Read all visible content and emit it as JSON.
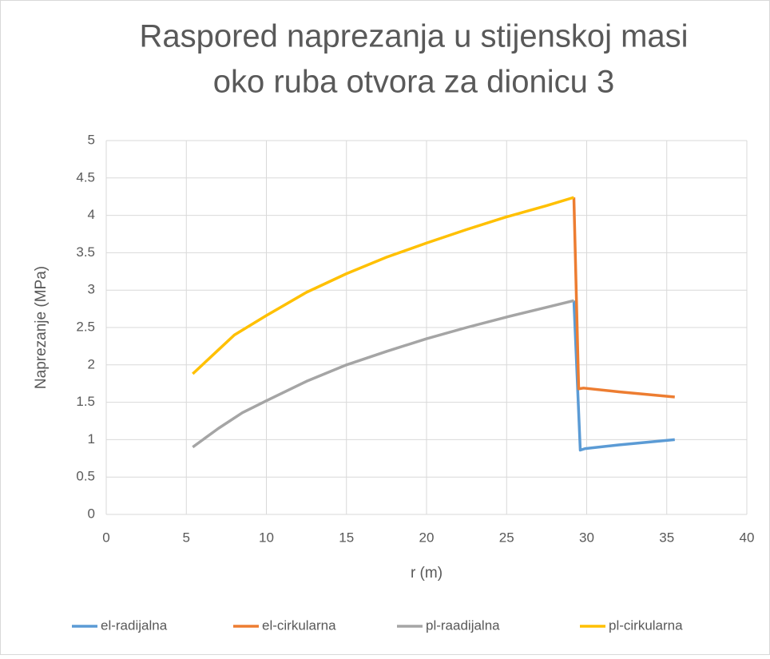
{
  "chart_data": {
    "type": "line",
    "title": [
      "Raspored naprezanja u stijenskoj masi",
      "oko ruba otvora za dionicu 3"
    ],
    "xlabel": "r (m)",
    "ylabel": "Naprezanje (MPa)",
    "xlim": [
      0,
      40
    ],
    "xticks": [
      0,
      5,
      10,
      15,
      20,
      25,
      30,
      35,
      40
    ],
    "ylim": [
      0,
      5
    ],
    "yticks": [
      0,
      0.5,
      1,
      1.5,
      2,
      2.5,
      3,
      3.5,
      4,
      4.5,
      5
    ],
    "grid": true,
    "legend": "bottom",
    "series": [
      {
        "name": "el-radijalna",
        "color": "#5b9bd5",
        "x": [
          29.2,
          29.6,
          29.9,
          32,
          35.5
        ],
        "values": [
          2.86,
          0.86,
          0.88,
          0.93,
          1.0
        ]
      },
      {
        "name": "el-cirkularna",
        "color": "#ed7d31",
        "x": [
          29.2,
          29.5,
          29.8,
          32,
          35.5
        ],
        "values": [
          4.24,
          1.68,
          1.69,
          1.64,
          1.57
        ]
      },
      {
        "name": "pl-raadijalna",
        "color": "#a5a5a5",
        "x": [
          5.4,
          7,
          8.5,
          10,
          12.5,
          15,
          17.5,
          20,
          22.5,
          25,
          27.5,
          29.2
        ],
        "values": [
          0.9,
          1.15,
          1.36,
          1.52,
          1.78,
          2.0,
          2.18,
          2.35,
          2.5,
          2.64,
          2.77,
          2.86
        ]
      },
      {
        "name": "pl-cirkularna",
        "color": "#ffc000",
        "x": [
          5.4,
          7,
          8,
          10,
          12.5,
          15,
          17.5,
          20,
          22.5,
          25,
          27.5,
          29.2
        ],
        "values": [
          1.88,
          2.2,
          2.4,
          2.66,
          2.97,
          3.22,
          3.44,
          3.63,
          3.81,
          3.98,
          4.13,
          4.24
        ]
      }
    ]
  }
}
